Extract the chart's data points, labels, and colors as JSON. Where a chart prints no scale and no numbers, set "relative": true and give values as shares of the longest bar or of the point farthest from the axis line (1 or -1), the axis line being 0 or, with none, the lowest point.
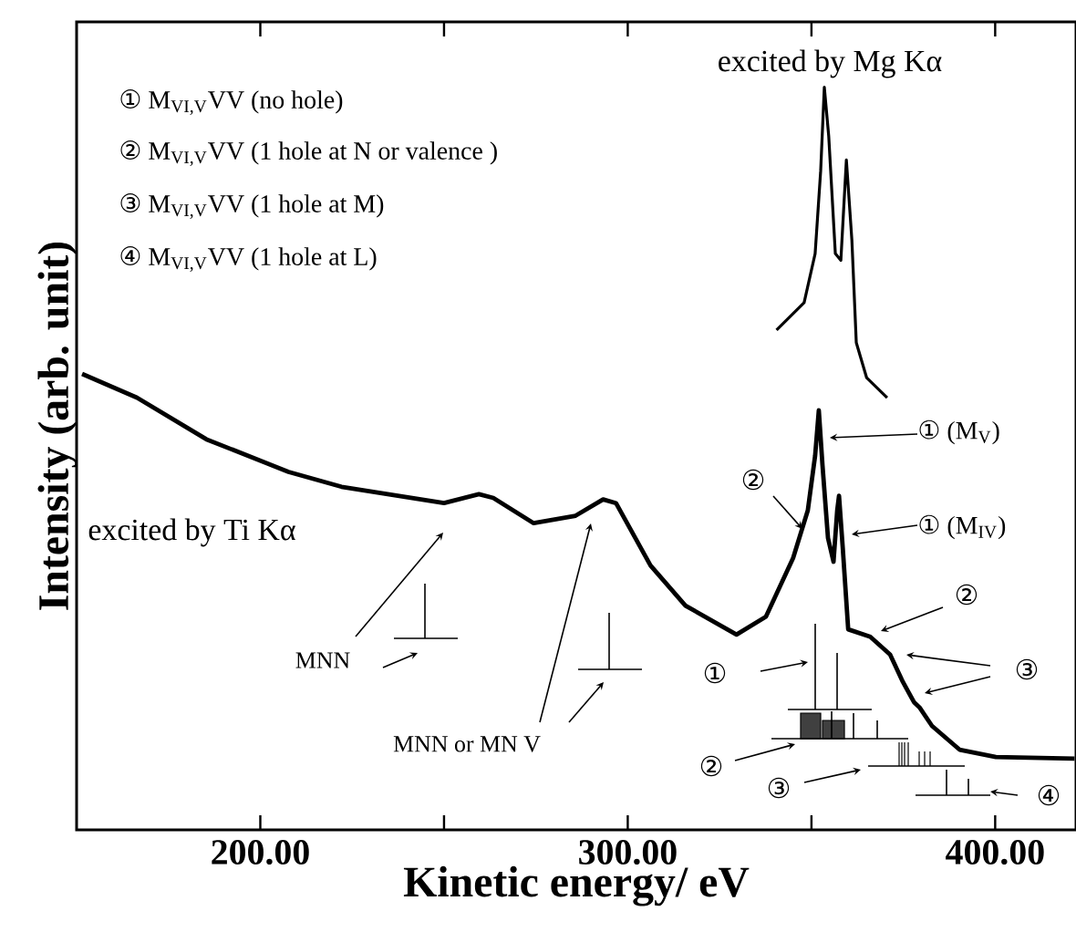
{
  "chart_data": {
    "type": "line",
    "relative": true,
    "xlabel": "Kinetic energy/ eV",
    "ylabel": "Intensity (arb. unit)",
    "xlim": [
      150,
      422
    ],
    "xticks": [
      {
        "value": 200,
        "label": "200.00"
      },
      {
        "value": 250,
        "label": null
      },
      {
        "value": 300,
        "label": "300.00"
      },
      {
        "value": 350,
        "label": null
      },
      {
        "value": 400,
        "label": "400.00"
      }
    ],
    "series": [
      {
        "color": "#000000",
        "x": [
          151.5,
          166.4,
          185.3,
          207.7,
          222.1,
          250,
          259.5,
          263.4,
          274.4,
          285.8,
          293.3,
          296.8,
          306.2,
          315.7,
          329.6,
          337.6,
          345,
          349,
          351,
          352,
          353,
          354.5,
          356,
          357,
          357.5,
          358.5,
          360,
          366,
          371.4,
          374.9,
          377.9,
          379.4,
          382.8,
          390.3,
          400.2,
          421.6
        ],
        "values": [
          0.614,
          0.582,
          0.526,
          0.482,
          0.462,
          0.44,
          0.452,
          0.447,
          0.413,
          0.423,
          0.445,
          0.44,
          0.356,
          0.302,
          0.263,
          0.287,
          0.366,
          0.43,
          0.504,
          0.565,
          0.491,
          0.393,
          0.361,
          0.43,
          0.45,
          0.381,
          0.27,
          0.26,
          0.236,
          0.199,
          0.172,
          0.165,
          0.14,
          0.108,
          0.098,
          0.096
        ]
      },
      {
        "color": "#000000",
        "x": [
          340.5,
          348,
          351,
          352.5,
          353.5,
          354.7,
          356.5,
          358,
          359.5,
          361,
          362.2,
          365,
          370.6
        ],
        "values": [
          0.673,
          0.71,
          0.776,
          0.887,
          1,
          0.934,
          0.776,
          0.767,
          0.902,
          0.794,
          0.656,
          0.609,
          0.582
        ]
      }
    ],
    "annotations": [
      "excited by Mg Kα",
      "① M$_{VI,V}$VV (no hole)",
      "② M$_{VI,V}$VV (1 hole at N or valence )",
      "③ M$_{VI,V}$VV (1 hole at M)",
      "④ M$_{VI,V}$VV (1 hole at L)",
      "excited by Ti Kα",
      "① (M$_{V}$)",
      "②",
      "① (M$_{IV}$)",
      "②",
      "③",
      "MNN",
      "MNN or MN V",
      "①",
      "②",
      "③",
      "④"
    ]
  }
}
